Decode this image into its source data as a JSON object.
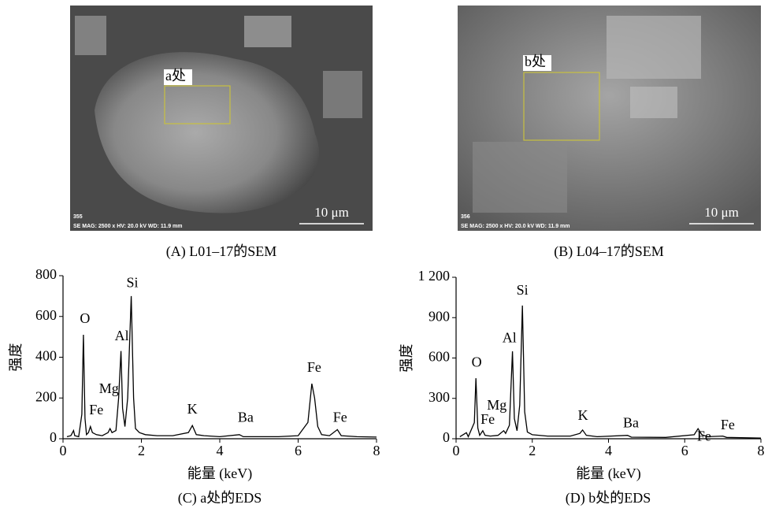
{
  "images": [
    {
      "label": "a处",
      "scale_bar": "10 μm",
      "number": "355",
      "info": "SE  MAG: 2500 x  HV: 20.0 kV  WD: 11.9 mm",
      "caption": "(A) L01–17的SEM"
    },
    {
      "label": "b处",
      "scale_bar": "10 μm",
      "number": "356",
      "info": "SE  MAG: 2500 x  HV: 20.0 kV  WD: 11.9 mm",
      "caption": "(B) L04–17的SEM"
    }
  ],
  "chart_data": [
    {
      "type": "line",
      "caption": "(C) a处的EDS",
      "x_label": "能量 (keV)",
      "y_label": "强度",
      "color": "#000000",
      "xlim": [
        0,
        8
      ],
      "xticks": [
        0,
        2,
        4,
        6,
        8
      ],
      "ylim": [
        0,
        800
      ],
      "yticks": [
        0,
        200,
        400,
        600,
        800
      ],
      "x": [
        0.1,
        0.2,
        0.27,
        0.3,
        0.4,
        0.48,
        0.52,
        0.56,
        0.6,
        0.65,
        0.7,
        0.75,
        0.85,
        1.0,
        1.15,
        1.2,
        1.25,
        1.35,
        1.42,
        1.48,
        1.52,
        1.58,
        1.65,
        1.74,
        1.8,
        1.85,
        1.95,
        2.1,
        2.4,
        2.8,
        3.2,
        3.3,
        3.4,
        3.6,
        4.0,
        4.5,
        4.6,
        5.0,
        5.5,
        6.0,
        6.25,
        6.35,
        6.42,
        6.5,
        6.6,
        6.8,
        7.0,
        7.1,
        7.5,
        8.0
      ],
      "values": [
        10,
        15,
        40,
        15,
        10,
        120,
        510,
        100,
        20,
        30,
        60,
        30,
        20,
        15,
        30,
        50,
        30,
        40,
        200,
        430,
        150,
        60,
        200,
        700,
        200,
        50,
        30,
        20,
        15,
        15,
        30,
        65,
        20,
        15,
        10,
        20,
        10,
        10,
        10,
        15,
        80,
        270,
        200,
        60,
        20,
        15,
        45,
        15,
        10,
        8
      ],
      "annotations": [
        {
          "text": "O",
          "x": 0.56,
          "y": 585
        },
        {
          "text": "Fe",
          "x": 0.85,
          "y": 135
        },
        {
          "text": "Mg",
          "x": 1.17,
          "y": 240
        },
        {
          "text": "Al",
          "x": 1.5,
          "y": 500
        },
        {
          "text": "Si",
          "x": 1.77,
          "y": 760
        },
        {
          "text": "K",
          "x": 3.3,
          "y": 140
        },
        {
          "text": "Ba",
          "x": 4.66,
          "y": 100
        },
        {
          "text": "Fe",
          "x": 6.41,
          "y": 345
        },
        {
          "text": "Fe",
          "x": 7.07,
          "y": 100
        }
      ]
    },
    {
      "type": "line",
      "caption": "(D) b处的EDS",
      "x_label": "能量 (keV)",
      "y_label": "强度",
      "color": "#000000",
      "xlim": [
        0,
        8
      ],
      "xticks": [
        0,
        2,
        4,
        6,
        8
      ],
      "ylim": [
        0,
        1200
      ],
      "yticks": [
        0,
        300,
        600,
        900,
        {
          "value": 1200,
          "label": "1 200"
        }
      ],
      "x": [
        0.1,
        0.27,
        0.32,
        0.48,
        0.52,
        0.57,
        0.62,
        0.7,
        0.76,
        0.9,
        1.1,
        1.25,
        1.3,
        1.4,
        1.48,
        1.53,
        1.6,
        1.67,
        1.74,
        1.8,
        1.87,
        2.0,
        2.4,
        3.0,
        3.25,
        3.32,
        3.42,
        3.7,
        4.5,
        4.6,
        5.5,
        6.25,
        6.35,
        6.45,
        6.6,
        7.0,
        7.1,
        8.0
      ],
      "values": [
        15,
        45,
        15,
        120,
        450,
        80,
        25,
        60,
        25,
        20,
        25,
        60,
        40,
        100,
        650,
        150,
        60,
        250,
        990,
        200,
        50,
        30,
        20,
        20,
        40,
        65,
        25,
        15,
        25,
        12,
        10,
        30,
        75,
        30,
        15,
        20,
        10,
        5
      ],
      "annotations": [
        {
          "text": "O",
          "x": 0.54,
          "y": 560
        },
        {
          "text": "Fe",
          "x": 0.83,
          "y": 135
        },
        {
          "text": "Mg",
          "x": 1.07,
          "y": 240
        },
        {
          "text": "Al",
          "x": 1.4,
          "y": 740
        },
        {
          "text": "Si",
          "x": 1.74,
          "y": 1095
        },
        {
          "text": "K",
          "x": 3.33,
          "y": 165
        },
        {
          "text": "Ba",
          "x": 4.59,
          "y": 110
        },
        {
          "text": "Fe",
          "x": 6.51,
          "y": 10
        },
        {
          "text": "Fe",
          "x": 7.13,
          "y": 94
        }
      ]
    }
  ]
}
